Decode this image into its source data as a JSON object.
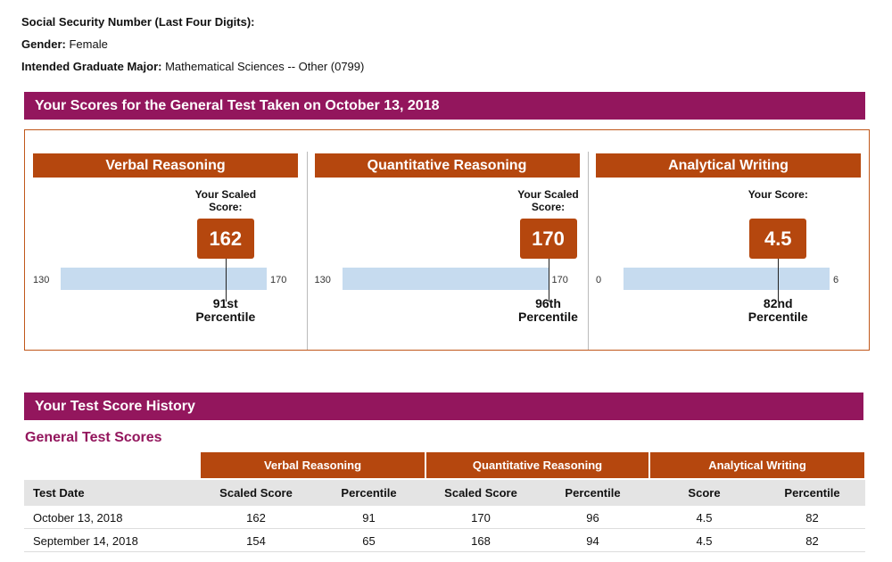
{
  "applicant": {
    "fields": [
      {
        "label": "Social Security Number (Last Four Digits):"
      },
      {
        "label": "Gender:",
        "value": "Female"
      },
      {
        "label": "Intended Graduate Major:",
        "value": "Mathematical Sciences -- Other (0799)"
      }
    ]
  },
  "scores": {
    "title": "Your Scores for the General Test Taken on October 13, 2018",
    "sections": [
      {
        "name": "Verbal Reasoning",
        "score_label": "Your Scaled Score:",
        "score": 162,
        "min": 130,
        "max": 170,
        "percentile": "91st",
        "percentile_label": "Percentile"
      },
      {
        "name": "Quantitative Reasoning",
        "score_label": "Your Scaled Score:",
        "score": 170,
        "min": 130,
        "max": 170,
        "percentile": "96th",
        "percentile_label": "Percentile"
      },
      {
        "name": "Analytical Writing",
        "score_label": "Your Score:",
        "score": 4.5,
        "min": 0,
        "max": 6,
        "percentile": "82nd",
        "percentile_label": "Percentile"
      }
    ]
  },
  "history": {
    "title": "Your Test Score History",
    "subtitle": "General Test Scores",
    "groups": [
      "Verbal Reasoning",
      "Quantitative Reasoning",
      "Analytical Writing"
    ],
    "columns": [
      "Test Date",
      "Scaled Score",
      "Percentile",
      "Scaled Score",
      "Percentile",
      "Score",
      "Percentile"
    ],
    "rows": [
      [
        "October 13, 2018",
        162,
        91,
        170,
        96,
        4.5,
        82
      ],
      [
        "September 14, 2018",
        154,
        65,
        168,
        94,
        4.5,
        82
      ]
    ]
  }
}
